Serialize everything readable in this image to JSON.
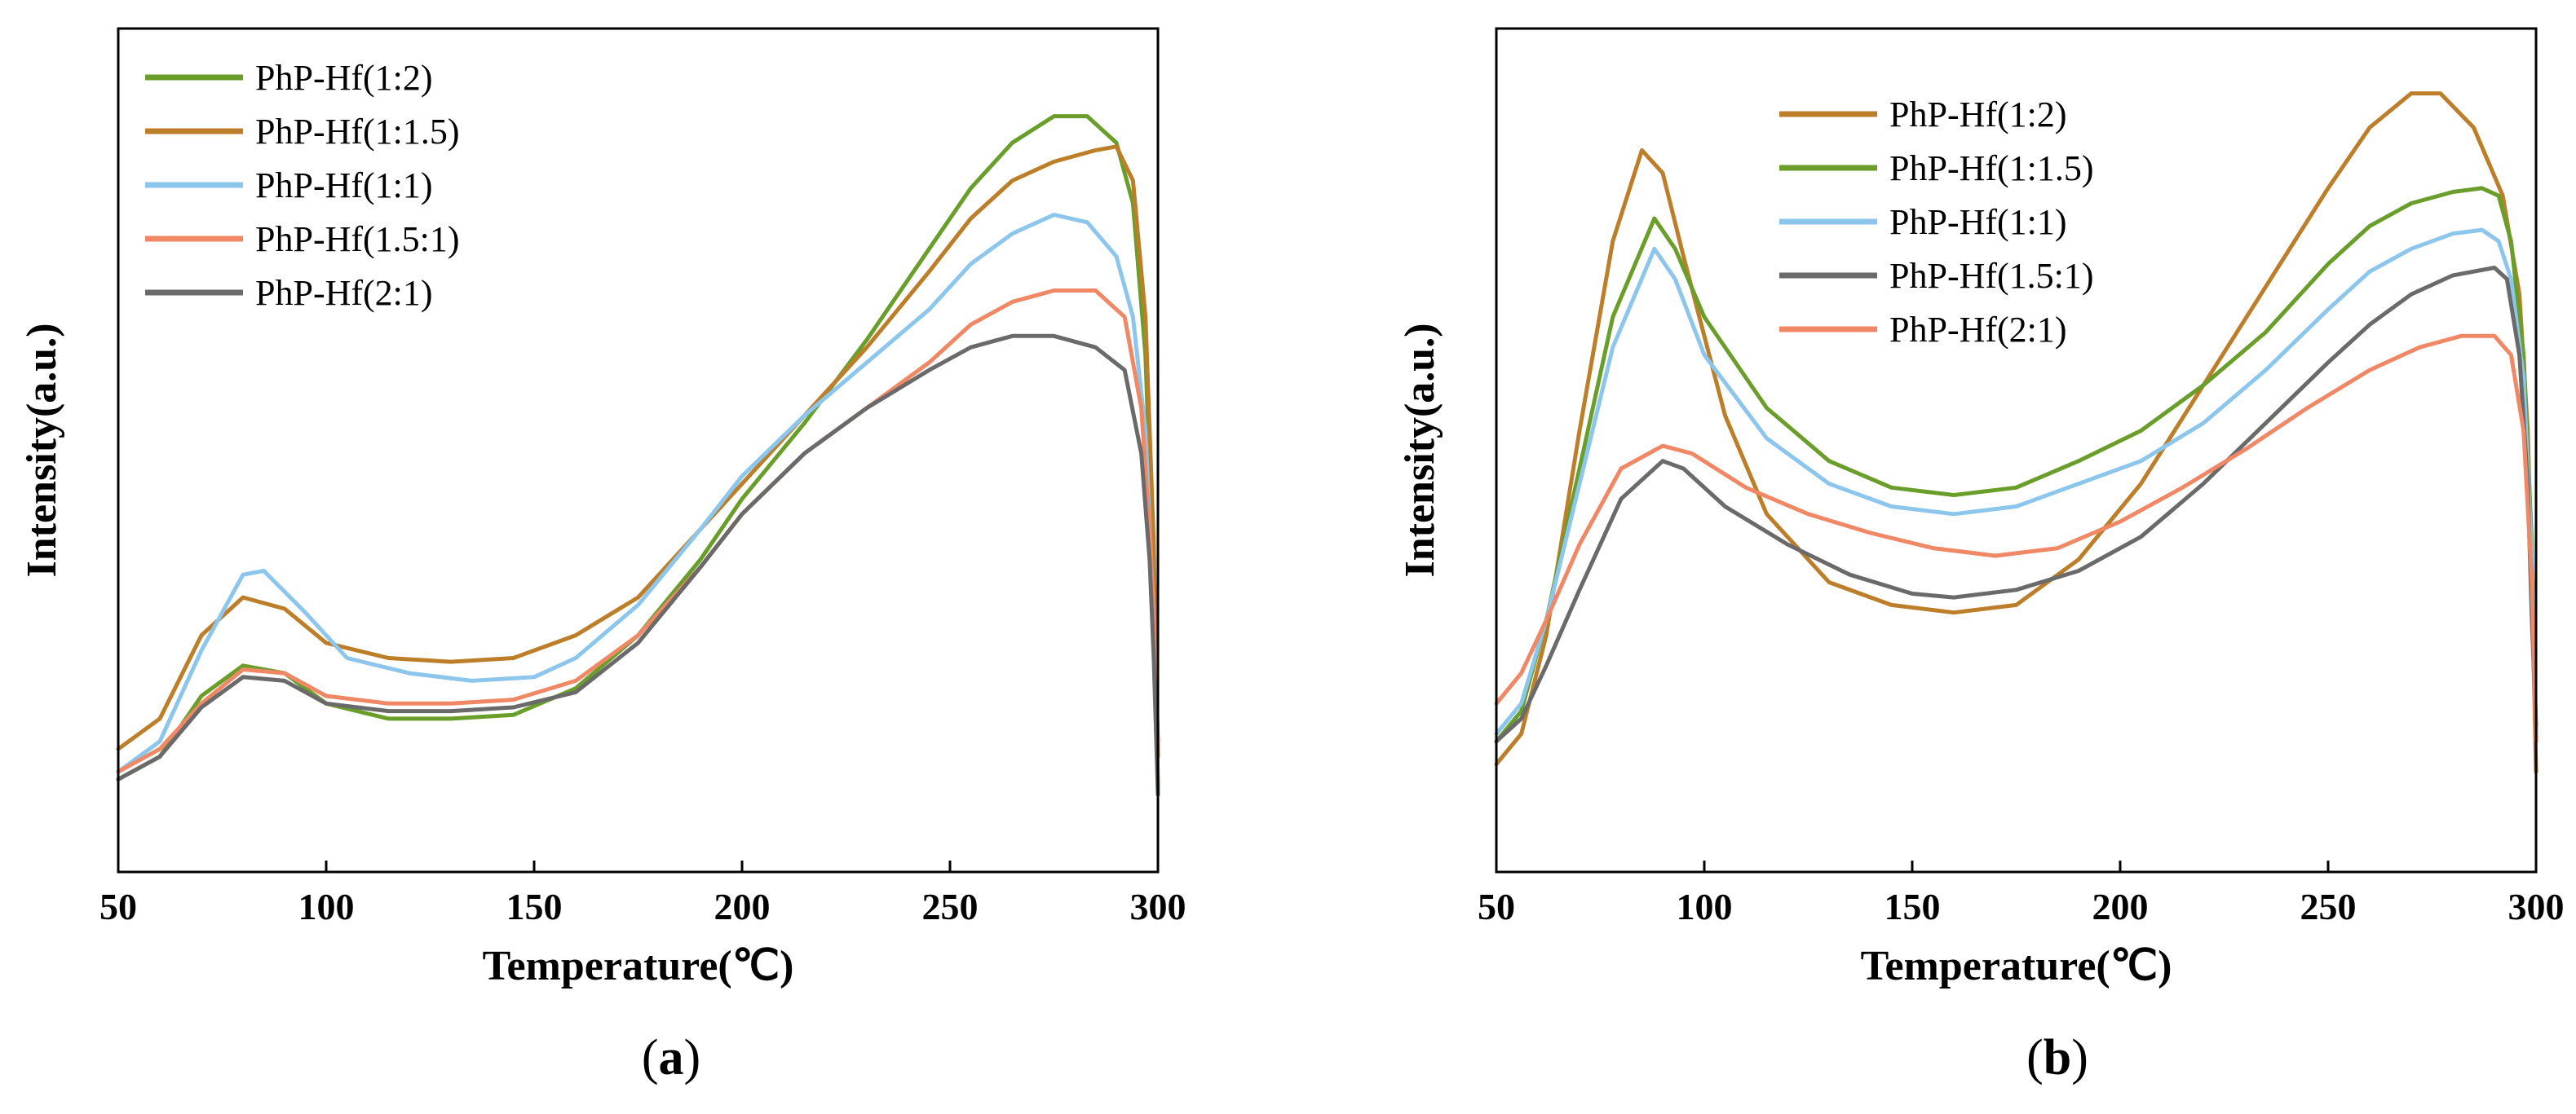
{
  "chart_data": [
    {
      "type": "line",
      "panel_label": "(a)",
      "panel_label_parts": [
        "(",
        "a",
        ")"
      ],
      "xlabel": "Temperature(℃)",
      "ylabel": "Intensity(a.u.)",
      "xlim": [
        50,
        300
      ],
      "ylim": [
        0,
        100
      ],
      "xticks": [
        50,
        100,
        150,
        200,
        250,
        300
      ],
      "yticks_shown": false,
      "legend_position": "top-left",
      "series": [
        {
          "name": "PhP-Hf(1:2)",
          "color": "#6a9e2a",
          "points": [
            [
              50,
              9
            ],
            [
              60,
              12
            ],
            [
              70,
              20
            ],
            [
              80,
              24
            ],
            [
              90,
              23
            ],
            [
              100,
              19
            ],
            [
              115,
              17
            ],
            [
              130,
              17
            ],
            [
              145,
              17.5
            ],
            [
              160,
              21
            ],
            [
              175,
              28
            ],
            [
              190,
              38
            ],
            [
              200,
              46
            ],
            [
              215,
              56
            ],
            [
              230,
              67
            ],
            [
              245,
              79
            ],
            [
              255,
              87
            ],
            [
              265,
              93
            ],
            [
              275,
              96.5
            ],
            [
              283,
              96.5
            ],
            [
              290,
              93
            ],
            [
              294,
              85
            ],
            [
              297,
              65
            ],
            [
              299,
              35
            ],
            [
              300,
              8
            ]
          ]
        },
        {
          "name": "PhP-Hf(1:1.5)",
          "color": "#bd7e2a",
          "points": [
            [
              50,
              13
            ],
            [
              60,
              17
            ],
            [
              70,
              28
            ],
            [
              80,
              33
            ],
            [
              90,
              31.5
            ],
            [
              100,
              27
            ],
            [
              115,
              25
            ],
            [
              130,
              24.5
            ],
            [
              145,
              25
            ],
            [
              160,
              28
            ],
            [
              175,
              33
            ],
            [
              190,
              42
            ],
            [
              200,
              48
            ],
            [
              215,
              57
            ],
            [
              230,
              66
            ],
            [
              245,
              76
            ],
            [
              255,
              83
            ],
            [
              265,
              88
            ],
            [
              275,
              90.5
            ],
            [
              285,
              92
            ],
            [
              290,
              92.5
            ],
            [
              294,
              88
            ],
            [
              297,
              70
            ],
            [
              299,
              40
            ],
            [
              300,
              12
            ]
          ]
        },
        {
          "name": "PhP-Hf(1:1)",
          "color": "#8cc6ec",
          "points": [
            [
              50,
              10
            ],
            [
              60,
              14
            ],
            [
              70,
              26
            ],
            [
              80,
              36
            ],
            [
              85,
              36.5
            ],
            [
              95,
              31
            ],
            [
              105,
              25
            ],
            [
              120,
              23
            ],
            [
              135,
              22
            ],
            [
              150,
              22.5
            ],
            [
              160,
              25
            ],
            [
              175,
              32
            ],
            [
              190,
              42
            ],
            [
              200,
              49
            ],
            [
              215,
              57
            ],
            [
              230,
              64
            ],
            [
              245,
              71
            ],
            [
              255,
              77
            ],
            [
              265,
              81
            ],
            [
              275,
              83.5
            ],
            [
              283,
              82.5
            ],
            [
              290,
              78
            ],
            [
              294,
              70
            ],
            [
              297,
              55
            ],
            [
              299,
              30
            ],
            [
              300,
              7
            ]
          ]
        },
        {
          "name": "PhP-Hf(1.5:1)",
          "color": "#f08866",
          "points": [
            [
              50,
              10
            ],
            [
              60,
              13
            ],
            [
              70,
              19
            ],
            [
              80,
              23.5
            ],
            [
              90,
              23
            ],
            [
              100,
              20
            ],
            [
              115,
              19
            ],
            [
              130,
              19
            ],
            [
              145,
              19.5
            ],
            [
              160,
              22
            ],
            [
              175,
              28
            ],
            [
              190,
              37
            ],
            [
              200,
              44
            ],
            [
              215,
              52
            ],
            [
              230,
              58
            ],
            [
              245,
              64
            ],
            [
              255,
              69
            ],
            [
              265,
              72
            ],
            [
              275,
              73.5
            ],
            [
              285,
              73.5
            ],
            [
              292,
              70
            ],
            [
              296,
              58
            ],
            [
              298,
              42
            ],
            [
              299,
              30
            ],
            [
              300,
              14
            ]
          ]
        },
        {
          "name": "PhP-Hf(2:1)",
          "color": "#6a6a6a",
          "points": [
            [
              50,
              9
            ],
            [
              60,
              12
            ],
            [
              70,
              18.5
            ],
            [
              80,
              22.5
            ],
            [
              90,
              22
            ],
            [
              100,
              19
            ],
            [
              115,
              18
            ],
            [
              130,
              18
            ],
            [
              145,
              18.5
            ],
            [
              160,
              20.5
            ],
            [
              175,
              27
            ],
            [
              190,
              37
            ],
            [
              200,
              44
            ],
            [
              215,
              52
            ],
            [
              230,
              58
            ],
            [
              245,
              63
            ],
            [
              255,
              66
            ],
            [
              265,
              67.5
            ],
            [
              275,
              67.5
            ],
            [
              285,
              66
            ],
            [
              292,
              63
            ],
            [
              296,
              52
            ],
            [
              298,
              38
            ],
            [
              299,
              25
            ],
            [
              300,
              7
            ]
          ]
        }
      ]
    },
    {
      "type": "line",
      "panel_label": "(b)",
      "panel_label_parts": [
        "(",
        "b",
        ")"
      ],
      "xlabel": "Temperature(℃)",
      "ylabel": "Intensity(a.u.)",
      "xlim": [
        50,
        300
      ],
      "ylim": [
        0,
        100
      ],
      "xticks": [
        50,
        100,
        150,
        200,
        250,
        300
      ],
      "yticks_shown": false,
      "legend_position": "top-center",
      "series": [
        {
          "name": "PhP-Hf(1:2)",
          "color": "#bd7e2a",
          "points": [
            [
              50,
              11
            ],
            [
              56,
              15
            ],
            [
              62,
              28
            ],
            [
              70,
              55
            ],
            [
              78,
              80
            ],
            [
              85,
              92
            ],
            [
              90,
              89
            ],
            [
              95,
              78
            ],
            [
              105,
              57
            ],
            [
              115,
              44
            ],
            [
              130,
              35
            ],
            [
              145,
              32
            ],
            [
              160,
              31
            ],
            [
              175,
              32
            ],
            [
              190,
              38
            ],
            [
              205,
              48
            ],
            [
              220,
              61
            ],
            [
              235,
              74
            ],
            [
              250,
              87
            ],
            [
              260,
              95
            ],
            [
              270,
              99.5
            ],
            [
              277,
              99.5
            ],
            [
              285,
              95
            ],
            [
              292,
              86
            ],
            [
              296,
              73
            ],
            [
              298,
              55
            ],
            [
              299,
              35
            ],
            [
              300,
              10
            ]
          ]
        },
        {
          "name": "PhP-Hf(1:1.5)",
          "color": "#6a9e2a",
          "points": [
            [
              50,
              14
            ],
            [
              56,
              18
            ],
            [
              62,
              30
            ],
            [
              70,
              50
            ],
            [
              78,
              70
            ],
            [
              88,
              83
            ],
            [
              93,
              79
            ],
            [
              100,
              70
            ],
            [
              115,
              58
            ],
            [
              130,
              51
            ],
            [
              145,
              47.5
            ],
            [
              160,
              46.5
            ],
            [
              175,
              47.5
            ],
            [
              190,
              51
            ],
            [
              205,
              55
            ],
            [
              220,
              61
            ],
            [
              235,
              68
            ],
            [
              250,
              77
            ],
            [
              260,
              82
            ],
            [
              270,
              85
            ],
            [
              280,
              86.5
            ],
            [
              287,
              87
            ],
            [
              291,
              86
            ],
            [
              294,
              80
            ],
            [
              297,
              65
            ],
            [
              299,
              40
            ],
            [
              300,
              14
            ]
          ]
        },
        {
          "name": "PhP-Hf(1:1)",
          "color": "#8cc6ec",
          "points": [
            [
              50,
              15
            ],
            [
              56,
              19
            ],
            [
              62,
              30
            ],
            [
              70,
              48
            ],
            [
              78,
              66
            ],
            [
              88,
              79
            ],
            [
              93,
              75
            ],
            [
              100,
              65
            ],
            [
              115,
              54
            ],
            [
              130,
              48
            ],
            [
              145,
              45
            ],
            [
              160,
              44
            ],
            [
              175,
              45
            ],
            [
              190,
              48
            ],
            [
              205,
              51
            ],
            [
              220,
              56
            ],
            [
              235,
              63
            ],
            [
              250,
              71
            ],
            [
              260,
              76
            ],
            [
              270,
              79
            ],
            [
              280,
              81
            ],
            [
              287,
              81.5
            ],
            [
              291,
              80
            ],
            [
              294,
              75
            ],
            [
              297,
              62
            ],
            [
              299,
              38
            ],
            [
              300,
              15
            ]
          ]
        },
        {
          "name": "PhP-Hf(1.5:1)",
          "color": "#6a6a6a",
          "points": [
            [
              50,
              14
            ],
            [
              56,
              17
            ],
            [
              62,
              24
            ],
            [
              70,
              34
            ],
            [
              80,
              46
            ],
            [
              90,
              51
            ],
            [
              95,
              50
            ],
            [
              105,
              45
            ],
            [
              120,
              40
            ],
            [
              135,
              36
            ],
            [
              150,
              33.5
            ],
            [
              160,
              33
            ],
            [
              175,
              34
            ],
            [
              190,
              36.5
            ],
            [
              205,
              41
            ],
            [
              220,
              48
            ],
            [
              235,
              56
            ],
            [
              250,
              64
            ],
            [
              260,
              69
            ],
            [
              270,
              73
            ],
            [
              280,
              75.5
            ],
            [
              290,
              76.5
            ],
            [
              293,
              75
            ],
            [
              296,
              65
            ],
            [
              298,
              48
            ],
            [
              299,
              30
            ],
            [
              300,
              16
            ]
          ]
        },
        {
          "name": "PhP-Hf(2:1)",
          "color": "#f08866",
          "points": [
            [
              50,
              19
            ],
            [
              56,
              23
            ],
            [
              62,
              30
            ],
            [
              70,
              40
            ],
            [
              80,
              50
            ],
            [
              90,
              53
            ],
            [
              97,
              52
            ],
            [
              110,
              47.5
            ],
            [
              125,
              44
            ],
            [
              140,
              41.5
            ],
            [
              155,
              39.5
            ],
            [
              170,
              38.5
            ],
            [
              185,
              39.5
            ],
            [
              200,
              43
            ],
            [
              215,
              47.5
            ],
            [
              230,
              52.5
            ],
            [
              245,
              58
            ],
            [
              260,
              63
            ],
            [
              272,
              66
            ],
            [
              282,
              67.5
            ],
            [
              290,
              67.5
            ],
            [
              294,
              65
            ],
            [
              297,
              55
            ],
            [
              299,
              35
            ],
            [
              300,
              14
            ]
          ]
        }
      ]
    }
  ]
}
